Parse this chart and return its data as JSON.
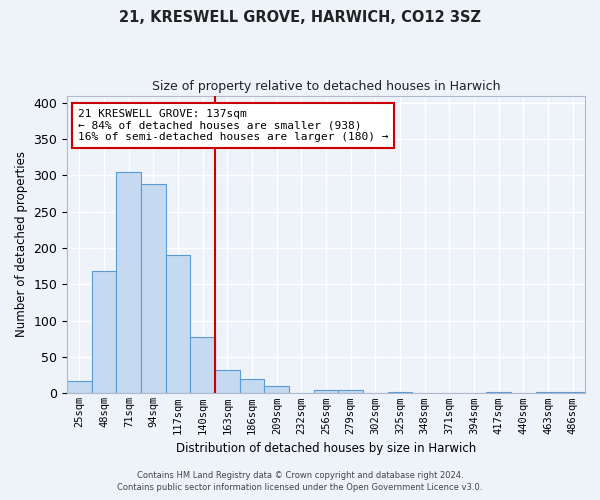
{
  "title": "21, KRESWELL GROVE, HARWICH, CO12 3SZ",
  "subtitle": "Size of property relative to detached houses in Harwich",
  "xlabel": "Distribution of detached houses by size in Harwich",
  "ylabel": "Number of detached properties",
  "bin_labels": [
    "25sqm",
    "48sqm",
    "71sqm",
    "94sqm",
    "117sqm",
    "140sqm",
    "163sqm",
    "186sqm",
    "209sqm",
    "232sqm",
    "256sqm",
    "279sqm",
    "302sqm",
    "325sqm",
    "348sqm",
    "371sqm",
    "394sqm",
    "417sqm",
    "440sqm",
    "463sqm",
    "486sqm"
  ],
  "bar_heights": [
    17,
    168,
    305,
    288,
    191,
    78,
    32,
    20,
    10,
    0,
    5,
    5,
    0,
    2,
    0,
    0,
    0,
    2,
    0,
    2,
    2
  ],
  "bar_color": "#c5d9f0",
  "bar_edge_color": "#5b9bd5",
  "ylim": [
    0,
    410
  ],
  "yticks": [
    0,
    50,
    100,
    150,
    200,
    250,
    300,
    350,
    400
  ],
  "vline_position": 5.5,
  "annotation_title": "21 KRESWELL GROVE: 137sqm",
  "annotation_line1": "← 84% of detached houses are smaller (938)",
  "annotation_line2": "16% of semi-detached houses are larger (180) →",
  "annotation_box_color": "#ffffff",
  "annotation_box_edge": "#cc0000",
  "vline_color": "#cc0000",
  "footer1": "Contains HM Land Registry data © Crown copyright and database right 2024.",
  "footer2": "Contains public sector information licensed under the Open Government Licence v3.0.",
  "bg_color": "#eef2f9",
  "grid_color": "#ffffff",
  "title_fontsize": 10.5,
  "subtitle_fontsize": 9
}
